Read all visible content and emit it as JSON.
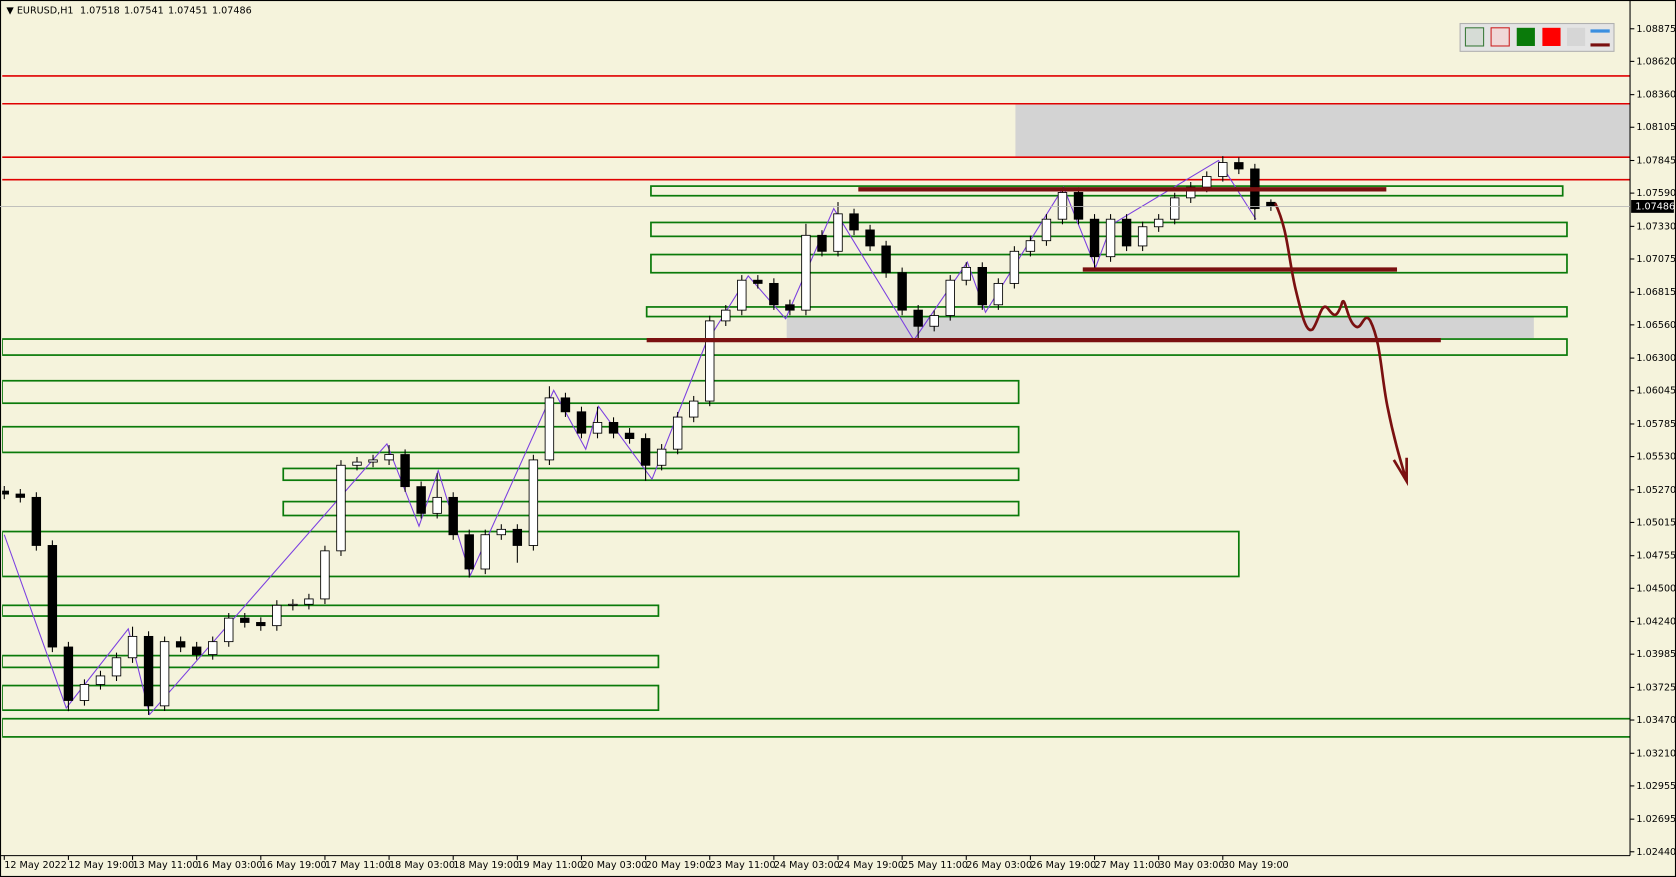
{
  "chart_data": {
    "type": "candlestick",
    "title": "EURUSD,H1",
    "header_ohlc": [
      1.07518,
      1.07541,
      1.07451,
      1.07486
    ],
    "open": [
      1.0526,
      1.05237,
      1.05211,
      1.04835,
      1.04041,
      1.03623,
      1.03748,
      1.03815,
      1.03957,
      1.04124,
      1.03581,
      1.04083,
      1.04041,
      1.03982,
      1.04083,
      1.04267,
      1.04233,
      1.04208,
      1.04367,
      1.04375,
      1.04417,
      1.04793,
      1.05462,
      1.05487,
      1.05504,
      1.05546,
      1.05295,
      1.05086,
      1.05211,
      1.04919,
      1.04651,
      1.04919,
      1.04961,
      1.04835,
      1.05504,
      1.05989,
      1.0588,
      1.05713,
      1.05797,
      1.05713,
      1.05671,
      1.05462,
      1.05588,
      1.05839,
      1.05964,
      1.06591,
      1.06675,
      1.06909,
      1.06884,
      1.06717,
      1.06675,
      1.0726,
      1.07135,
      1.07428,
      1.07302,
      1.07177,
      1.06968,
      1.06675,
      1.06549,
      1.06633,
      1.06909,
      1.07009,
      1.06717,
      1.06884,
      1.07135,
      1.07218,
      1.07386,
      1.07595,
      1.07386,
      1.07093,
      1.07386,
      1.07177,
      1.07327,
      1.07386,
      1.07553,
      1.07637,
      1.0772,
      1.07829,
      1.07779,
      1.07518
    ],
    "high": [
      1.053,
      1.05277,
      1.05251,
      1.04875,
      1.04081,
      1.03788,
      1.03855,
      1.03997,
      1.042,
      1.04164,
      1.04123,
      1.04123,
      1.04081,
      1.04123,
      1.04307,
      1.04307,
      1.04273,
      1.04407,
      1.04415,
      1.04457,
      1.04833,
      1.05502,
      1.05527,
      1.05544,
      1.0562,
      1.05586,
      1.05335,
      1.054,
      1.05251,
      1.04959,
      1.04959,
      1.05001,
      1.05001,
      1.05544,
      1.0608,
      1.06029,
      1.0592,
      1.0592,
      1.05837,
      1.05753,
      1.05711,
      1.05628,
      1.05879,
      1.06004,
      1.06631,
      1.06715,
      1.06949,
      1.06949,
      1.06924,
      1.06757,
      1.0735,
      1.073,
      1.0752,
      1.07468,
      1.07342,
      1.07217,
      1.07008,
      1.06715,
      1.06673,
      1.06949,
      1.07049,
      1.07049,
      1.06924,
      1.07175,
      1.07258,
      1.07426,
      1.07635,
      1.07635,
      1.07426,
      1.07426,
      1.07426,
      1.07367,
      1.07426,
      1.07593,
      1.07677,
      1.0776,
      1.07879,
      1.07869,
      1.07819,
      1.07541
    ],
    "low": [
      1.05197,
      1.05171,
      1.04795,
      1.04001,
      1.0354,
      1.03583,
      1.03708,
      1.03775,
      1.03917,
      1.0351,
      1.03541,
      1.04001,
      1.03942,
      1.03942,
      1.04043,
      1.04193,
      1.04168,
      1.04168,
      1.04327,
      1.04335,
      1.04377,
      1.04753,
      1.05422,
      1.05447,
      1.05464,
      1.05255,
      1.05046,
      1.05046,
      1.04879,
      1.04584,
      1.04611,
      1.04879,
      1.047,
      1.04795,
      1.05464,
      1.0584,
      1.05673,
      1.05673,
      1.05673,
      1.05631,
      1.0534,
      1.05422,
      1.05548,
      1.05799,
      1.05924,
      1.06551,
      1.06635,
      1.06844,
      1.06677,
      1.06635,
      1.06635,
      1.07095,
      1.07095,
      1.07262,
      1.07137,
      1.06928,
      1.06635,
      1.06441,
      1.06509,
      1.06593,
      1.06869,
      1.06677,
      1.06677,
      1.06844,
      1.07095,
      1.07178,
      1.07346,
      1.07346,
      1.0698,
      1.07053,
      1.07137,
      1.07137,
      1.07287,
      1.07346,
      1.07513,
      1.07597,
      1.0768,
      1.07739,
      1.0738,
      1.07451
    ],
    "close": [
      1.05237,
      1.05211,
      1.04835,
      1.04041,
      1.03623,
      1.03748,
      1.03815,
      1.03957,
      1.04124,
      1.03581,
      1.04083,
      1.04041,
      1.03982,
      1.04083,
      1.04267,
      1.04233,
      1.04208,
      1.04367,
      1.04375,
      1.04417,
      1.04793,
      1.05462,
      1.05487,
      1.05504,
      1.05546,
      1.05295,
      1.05086,
      1.05211,
      1.04919,
      1.04651,
      1.04919,
      1.04961,
      1.04835,
      1.05504,
      1.05989,
      1.0588,
      1.05713,
      1.05797,
      1.05713,
      1.05671,
      1.05462,
      1.05588,
      1.05839,
      1.05964,
      1.06591,
      1.06675,
      1.06909,
      1.06884,
      1.06717,
      1.06675,
      1.0726,
      1.07135,
      1.07428,
      1.07302,
      1.07177,
      1.06968,
      1.06675,
      1.06549,
      1.06633,
      1.06909,
      1.07009,
      1.06717,
      1.06884,
      1.07135,
      1.07218,
      1.07386,
      1.07595,
      1.07386,
      1.07093,
      1.07386,
      1.07177,
      1.07327,
      1.07386,
      1.07553,
      1.07637,
      1.0772,
      1.07829,
      1.07779,
      1.07469,
      1.07486
    ],
    "xticks": [
      {
        "value": 0,
        "label": "12 May 2022"
      },
      {
        "value": 4,
        "label": "12 May 19:00"
      },
      {
        "value": 8,
        "label": "13 May 11:00"
      },
      {
        "value": 12,
        "label": "16 May 03:00"
      },
      {
        "value": 16,
        "label": "16 May 19:00"
      },
      {
        "value": 20,
        "label": "17 May 11:00"
      },
      {
        "value": 24,
        "label": "18 May 03:00"
      },
      {
        "value": 28,
        "label": "18 May 19:00"
      },
      {
        "value": 32,
        "label": "19 May 11:00"
      },
      {
        "value": 36,
        "label": "20 May 03:00"
      },
      {
        "value": 40,
        "label": "20 May 19:00"
      },
      {
        "value": 44,
        "label": "23 May 11:00"
      },
      {
        "value": 48,
        "label": "24 May 03:00"
      },
      {
        "value": 52,
        "label": "24 May 19:00"
      },
      {
        "value": 56,
        "label": "25 May 11:00"
      },
      {
        "value": 60,
        "label": "26 May 03:00"
      },
      {
        "value": 64,
        "label": "26 May 19:00"
      },
      {
        "value": 68,
        "label": "27 May 11:00"
      },
      {
        "value": 72,
        "label": "30 May 03:00"
      },
      {
        "value": 76,
        "label": "30 May 19:00"
      }
    ],
    "ylim": [
      1.0241,
      1.091
    ],
    "yticks": [
      1.08875,
      {
        "value": 1.0862,
        "label": "1.08620"
      },
      {
        "value": 1.0836,
        "label": "1.08360"
      },
      1.08105,
      1.07845,
      {
        "value": 1.0759,
        "label": "1.07590"
      },
      {
        "value": 1.0733,
        "label": "1.07330"
      },
      1.07075,
      1.06815,
      {
        "value": 1.0656,
        "label": "1.06560"
      },
      {
        "value": 1.063,
        "label": "1.06300"
      },
      1.06045,
      1.05785,
      {
        "value": 1.0553,
        "label": "1.05530"
      },
      {
        "value": 1.0527,
        "label": "1.05270"
      },
      1.05015,
      1.04755,
      {
        "value": 1.045,
        "label": "1.04500"
      },
      {
        "value": 1.0424,
        "label": "1.04240"
      },
      1.03985,
      1.03725,
      {
        "value": 1.0347,
        "label": "1.03470"
      },
      {
        "value": 1.0321,
        "label": "1.03210"
      },
      1.02955,
      1.02695,
      {
        "value": 1.0244,
        "label": "1.02440"
      }
    ],
    "last_price": 1.07486,
    "grid": false,
    "up_color": "#ffffff",
    "down_color": "#000000",
    "outline_color": "#000000"
  }
}
